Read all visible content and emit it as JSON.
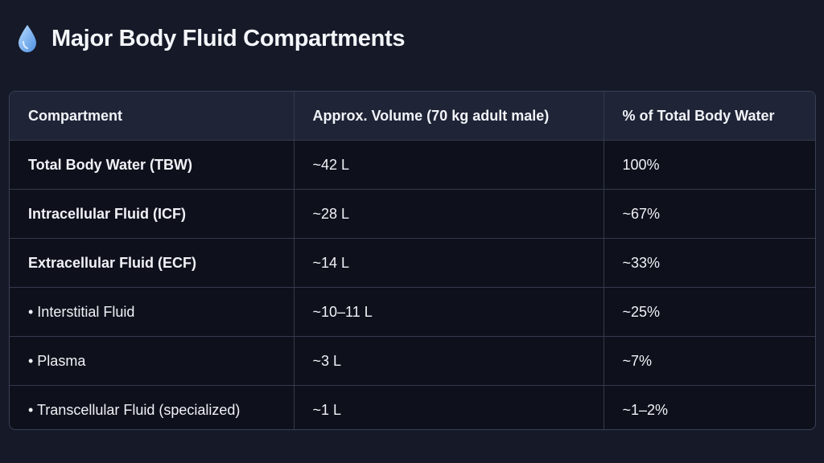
{
  "header": {
    "icon": "water-drop-icon",
    "title": "Major Body Fluid Compartments"
  },
  "table": {
    "columns": [
      "Compartment",
      "Approx. Volume (70 kg adult male)",
      "% of Total Body Water"
    ],
    "rows": [
      {
        "compartment": "Total Body Water (TBW)",
        "volume": "~42 L",
        "percent": "100%",
        "emphasis": "bold"
      },
      {
        "compartment": "Intracellular Fluid (ICF)",
        "volume": "~28 L",
        "percent": "~67%",
        "emphasis": "bold"
      },
      {
        "compartment": "Extracellular Fluid (ECF)",
        "volume": "~14 L",
        "percent": "~33%",
        "emphasis": "bold"
      },
      {
        "compartment": "• Interstitial Fluid",
        "volume": "~10–11 L",
        "percent": "~25%",
        "emphasis": "normal"
      },
      {
        "compartment": "• Plasma",
        "volume": "~3 L",
        "percent": "~7%",
        "emphasis": "normal"
      },
      {
        "compartment": "• Transcellular Fluid (specialized)",
        "volume": "~1 L",
        "percent": "~1–2%",
        "emphasis": "normal"
      }
    ]
  },
  "colors": {
    "background": "#161a28",
    "header_row": "#1f2436",
    "table_body": "#0e111b",
    "border": "#343a4d",
    "drop_accent": "#7fb8f0"
  }
}
